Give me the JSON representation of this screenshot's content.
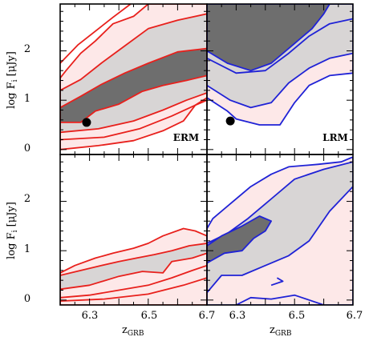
{
  "chart_data": {
    "type": "contour",
    "x_ticks": [
      6.3,
      6.5,
      6.7
    ],
    "x_tick_labels": [
      "6.3",
      "6.5",
      "6.7"
    ],
    "y_ticks": [
      0,
      1,
      2
    ],
    "y_tick_labels": [
      "0",
      "1",
      "2"
    ],
    "xlim": [
      6.2,
      6.7
    ],
    "ylim": [
      -0.1,
      2.95
    ],
    "xlabel_main": "z",
    "xlabel_sub": "GRB",
    "ylabel_main": "log F",
    "ylabel_sub": "i",
    "ylabel_unit": "[μJy]",
    "colors": {
      "red_line": "#e8201c",
      "blue_line": "#1f22d6",
      "light_fill": "#fde8e8",
      "mid_fill": "#d8d5d5",
      "dark_fill": "#6e6e6e"
    },
    "panels": [
      {
        "id": "top-left",
        "tag": "ERM",
        "line_color": "red",
        "marker": [
          6.29,
          0.55
        ],
        "levels": [
          {
            "fill": "light",
            "points": [
              [
                6.2,
                0.0
              ],
              [
                6.33,
                0.08
              ],
              [
                6.45,
                0.18
              ],
              [
                6.55,
                0.38
              ],
              [
                6.62,
                0.58
              ],
              [
                6.66,
                0.9
              ],
              [
                6.7,
                1.05
              ],
              [
                6.7,
                2.95
              ],
              [
                6.5,
                2.95
              ],
              [
                6.45,
                2.7
              ],
              [
                6.38,
                2.55
              ],
              [
                6.32,
                2.2
              ],
              [
                6.27,
                1.95
              ],
              [
                6.22,
                1.6
              ],
              [
                6.2,
                1.45
              ]
            ]
          },
          {
            "fill": "mid",
            "points": [
              [
                6.2,
                0.35
              ],
              [
                6.33,
                0.42
              ],
              [
                6.45,
                0.58
              ],
              [
                6.55,
                0.8
              ],
              [
                6.63,
                1.0
              ],
              [
                6.7,
                1.15
              ],
              [
                6.7,
                2.75
              ],
              [
                6.6,
                2.62
              ],
              [
                6.5,
                2.45
              ],
              [
                6.42,
                2.1
              ],
              [
                6.34,
                1.75
              ],
              [
                6.27,
                1.42
              ],
              [
                6.2,
                1.2
              ]
            ]
          },
          {
            "fill": "dark",
            "points": [
              [
                6.2,
                0.55
              ],
              [
                6.27,
                0.55
              ],
              [
                6.32,
                0.78
              ],
              [
                6.4,
                0.92
              ],
              [
                6.48,
                1.18
              ],
              [
                6.55,
                1.3
              ],
              [
                6.63,
                1.4
              ],
              [
                6.7,
                1.5
              ],
              [
                6.7,
                2.05
              ],
              [
                6.6,
                1.98
              ],
              [
                6.5,
                1.75
              ],
              [
                6.42,
                1.55
              ],
              [
                6.34,
                1.32
              ],
              [
                6.27,
                1.08
              ],
              [
                6.2,
                0.85
              ]
            ]
          }
        ],
        "extra_lines": [
          [
            [
              6.2,
              0.2
            ],
            [
              6.35,
              0.25
            ],
            [
              6.47,
              0.42
            ],
            [
              6.58,
              0.68
            ],
            [
              6.66,
              0.9
            ],
            [
              6.7,
              1.0
            ]
          ],
          [
            [
              6.2,
              1.75
            ],
            [
              6.26,
              2.12
            ],
            [
              6.32,
              2.4
            ],
            [
              6.38,
              2.68
            ],
            [
              6.44,
              2.95
            ]
          ]
        ]
      },
      {
        "id": "top-right",
        "tag": "LRM",
        "line_color": "blue",
        "marker": [
          6.28,
          0.58
        ],
        "levels": [
          {
            "fill": "light",
            "points": [
              [
                6.2,
                1.05
              ],
              [
                6.27,
                0.78
              ],
              [
                6.3,
                0.62
              ],
              [
                6.38,
                0.5
              ],
              [
                6.45,
                0.5
              ],
              [
                6.5,
                0.95
              ],
              [
                6.55,
                1.3
              ],
              [
                6.62,
                1.5
              ],
              [
                6.7,
                1.55
              ],
              [
                6.7,
                2.95
              ],
              [
                6.2,
                2.95
              ]
            ]
          },
          {
            "fill": "mid",
            "points": [
              [
                6.2,
                1.3
              ],
              [
                6.28,
                1.0
              ],
              [
                6.35,
                0.85
              ],
              [
                6.42,
                0.95
              ],
              [
                6.48,
                1.35
              ],
              [
                6.55,
                1.65
              ],
              [
                6.62,
                1.85
              ],
              [
                6.7,
                1.95
              ],
              [
                6.7,
                2.95
              ],
              [
                6.2,
                2.95
              ]
            ]
          },
          {
            "fill": "dark",
            "points": [
              [
                6.2,
                2.0
              ],
              [
                6.27,
                1.75
              ],
              [
                6.35,
                1.6
              ],
              [
                6.42,
                1.75
              ],
              [
                6.5,
                2.15
              ],
              [
                6.56,
                2.45
              ],
              [
                6.6,
                2.75
              ],
              [
                6.62,
                2.95
              ],
              [
                6.2,
                2.95
              ]
            ]
          }
        ],
        "extra_lines": [
          [
            [
              6.2,
              1.85
            ],
            [
              6.3,
              1.55
            ],
            [
              6.4,
              1.6
            ],
            [
              6.48,
              1.95
            ],
            [
              6.55,
              2.3
            ],
            [
              6.62,
              2.55
            ],
            [
              6.7,
              2.65
            ]
          ]
        ]
      },
      {
        "id": "bottom-left",
        "tag": "",
        "line_color": "red",
        "marker": null,
        "levels": [
          {
            "fill": "light",
            "points": [
              [
                6.2,
                -0.1
              ],
              [
                6.7,
                -0.1
              ],
              [
                6.7,
                1.3
              ],
              [
                6.66,
                1.4
              ],
              [
                6.62,
                1.45
              ],
              [
                6.55,
                1.3
              ],
              [
                6.5,
                1.15
              ],
              [
                6.45,
                1.05
              ],
              [
                6.38,
                0.95
              ],
              [
                6.32,
                0.85
              ],
              [
                6.25,
                0.7
              ],
              [
                6.2,
                0.55
              ]
            ]
          },
          {
            "fill": "mid",
            "points": [
              [
                6.2,
                0.22
              ],
              [
                6.3,
                0.3
              ],
              [
                6.4,
                0.48
              ],
              [
                6.48,
                0.58
              ],
              [
                6.55,
                0.55
              ],
              [
                6.58,
                0.78
              ],
              [
                6.65,
                0.85
              ],
              [
                6.7,
                0.95
              ],
              [
                6.7,
                1.15
              ],
              [
                6.64,
                1.1
              ],
              [
                6.58,
                1.0
              ],
              [
                6.52,
                0.92
              ],
              [
                6.46,
                0.85
              ],
              [
                6.4,
                0.78
              ],
              [
                6.34,
                0.7
              ],
              [
                6.27,
                0.6
              ],
              [
                6.2,
                0.5
              ]
            ]
          }
        ],
        "extra_lines": [
          [
            [
              6.2,
              0.05
            ],
            [
              6.3,
              0.1
            ],
            [
              6.42,
              0.22
            ],
            [
              6.5,
              0.3
            ],
            [
              6.58,
              0.45
            ],
            [
              6.65,
              0.6
            ],
            [
              6.7,
              0.7
            ]
          ],
          [
            [
              6.2,
              -0.02
            ],
            [
              6.35,
              0.02
            ],
            [
              6.5,
              0.12
            ],
            [
              6.62,
              0.3
            ],
            [
              6.7,
              0.45
            ]
          ]
        ]
      },
      {
        "id": "bottom-right",
        "tag": "",
        "line_color": "blue",
        "marker": null,
        "levels": [
          {
            "fill": "light",
            "points": [
              [
                6.2,
                -0.1
              ],
              [
                6.7,
                -0.1
              ],
              [
                6.7,
                2.9
              ],
              [
                6.66,
                2.8
              ],
              [
                6.58,
                2.75
              ],
              [
                6.48,
                2.7
              ],
              [
                6.42,
                2.55
              ],
              [
                6.35,
                2.3
              ],
              [
                6.28,
                1.95
              ],
              [
                6.22,
                1.65
              ],
              [
                6.2,
                1.45
              ]
            ]
          },
          {
            "fill": "mid",
            "points": [
              [
                6.2,
                0.15
              ],
              [
                6.25,
                0.5
              ],
              [
                6.32,
                0.5
              ],
              [
                6.4,
                0.7
              ],
              [
                6.48,
                0.9
              ],
              [
                6.55,
                1.2
              ],
              [
                6.62,
                1.8
              ],
              [
                6.7,
                2.3
              ],
              [
                6.7,
                2.8
              ],
              [
                6.6,
                2.65
              ],
              [
                6.5,
                2.45
              ],
              [
                6.42,
                2.05
              ],
              [
                6.34,
                1.65
              ],
              [
                6.27,
                1.35
              ],
              [
                6.2,
                1.15
              ]
            ]
          },
          {
            "fill": "dark",
            "points": [
              [
                6.2,
                0.75
              ],
              [
                6.26,
                0.95
              ],
              [
                6.32,
                1.0
              ],
              [
                6.36,
                1.25
              ],
              [
                6.4,
                1.4
              ],
              [
                6.42,
                1.6
              ],
              [
                6.38,
                1.7
              ],
              [
                6.32,
                1.5
              ],
              [
                6.25,
                1.3
              ],
              [
                6.2,
                1.1
              ]
            ]
          }
        ],
        "extra_lines": [
          [
            [
              6.3,
              -0.1
            ],
            [
              6.35,
              0.05
            ],
            [
              6.42,
              0.02
            ],
            [
              6.5,
              0.1
            ],
            [
              6.55,
              0.0
            ],
            [
              6.6,
              -0.1
            ]
          ],
          [
            [
              6.42,
              0.3
            ],
            [
              6.46,
              0.38
            ],
            [
              6.44,
              0.45
            ]
          ]
        ]
      }
    ]
  }
}
